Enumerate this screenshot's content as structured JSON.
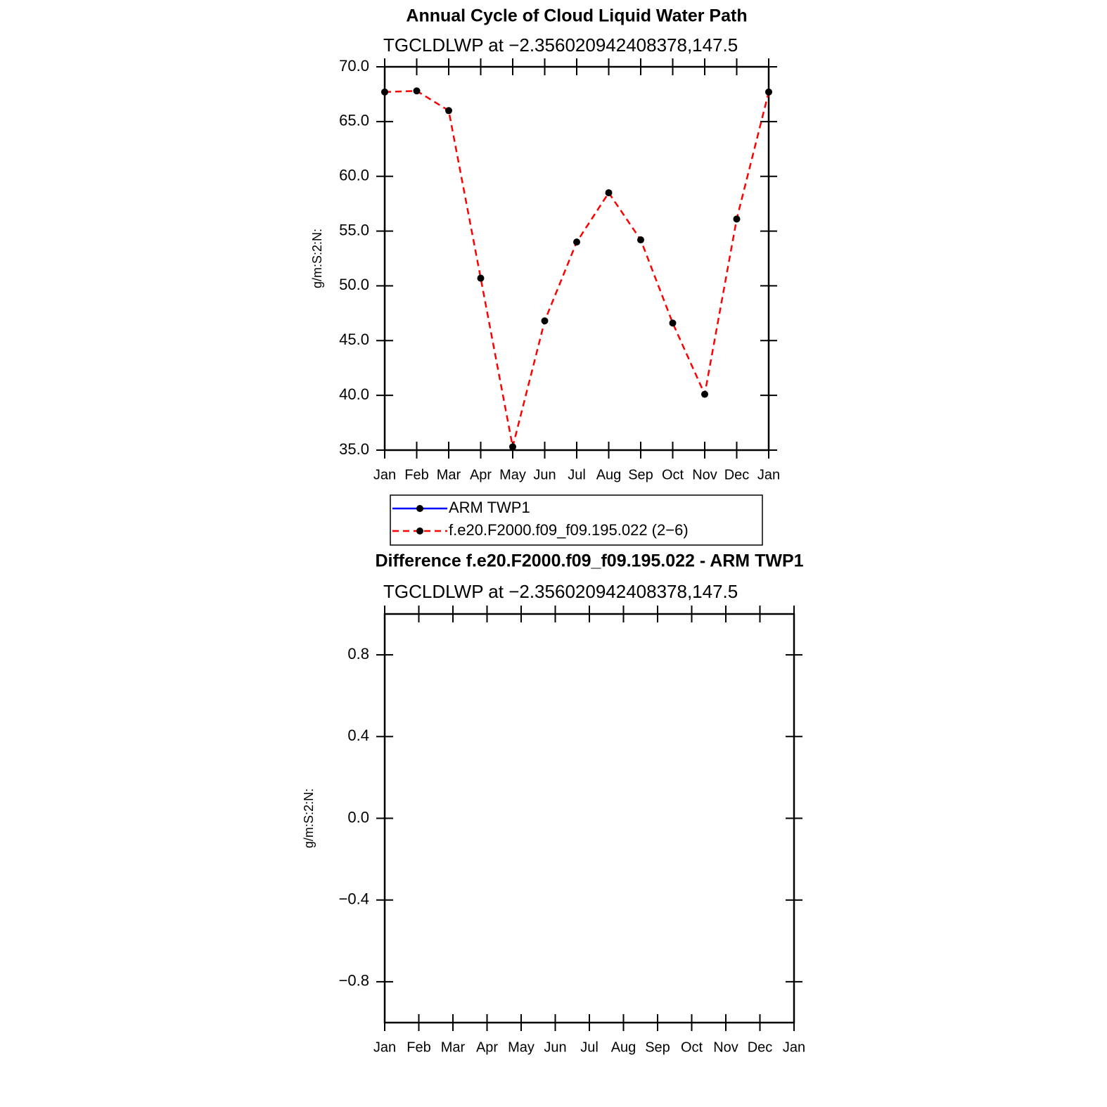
{
  "chart_data": [
    {
      "type": "line",
      "title": "Annual Cycle of Cloud Liquid Water Path",
      "subtitle": "TGCLDLWP at −2.356020942408378,147.5",
      "y_label": "g/m:S:2:N:",
      "categories": [
        "Jan",
        "Feb",
        "Mar",
        "Apr",
        "May",
        "Jun",
        "Jul",
        "Aug",
        "Sep",
        "Oct",
        "Nov",
        "Dec",
        "Jan"
      ],
      "series": [
        {
          "name": "ARM TWP1",
          "color": "#0000ff",
          "dashed": false,
          "values": [
            null,
            null,
            null,
            null,
            null,
            null,
            null,
            null,
            null,
            null,
            null,
            null,
            null
          ]
        },
        {
          "name": "f.e20.F2000.f09_f09.195.022 (2−6)",
          "color": "#ff0000",
          "dashed": true,
          "values": [
            67.7,
            67.8,
            66.0,
            50.7,
            35.3,
            46.8,
            54.0,
            58.5,
            54.2,
            46.6,
            40.1,
            56.1,
            67.7
          ]
        }
      ],
      "ylim": [
        35,
        70
      ],
      "yticks": [
        {
          "value": 35,
          "label": "35.0"
        },
        {
          "value": 40,
          "label": "40.0"
        },
        {
          "value": 45,
          "label": "45.0"
        },
        {
          "value": 50,
          "label": "50.0"
        },
        {
          "value": 55,
          "label": "55.0"
        },
        {
          "value": 60,
          "label": "60.0"
        },
        {
          "value": 65,
          "label": "65.0"
        },
        {
          "value": 70,
          "label": "70.0"
        }
      ],
      "legend": true
    },
    {
      "type": "line",
      "title": "Difference f.e20.F2000.f09_f09.195.022 - ARM TWP1",
      "subtitle": "TGCLDLWP at −2.356020942408378,147.5",
      "y_label": "g/m:S:2:N:",
      "categories": [
        "Jan",
        "Feb",
        "Mar",
        "Apr",
        "May",
        "Jun",
        "Jul",
        "Aug",
        "Sep",
        "Oct",
        "Nov",
        "Dec",
        "Jan"
      ],
      "series": [
        {
          "color": "#ff0000",
          "dashed": true,
          "values": [
            null,
            null,
            null,
            null,
            null,
            null,
            null,
            null,
            null,
            null,
            null,
            null,
            null
          ]
        }
      ],
      "ylim": [
        -1,
        1
      ],
      "yticks": [
        {
          "value": -0.8,
          "label": "−0.8"
        },
        {
          "value": -0.4,
          "label": "−0.4"
        },
        {
          "value": 0,
          "label": "0.0"
        },
        0.4,
        0.8
      ],
      "legend": false
    }
  ]
}
